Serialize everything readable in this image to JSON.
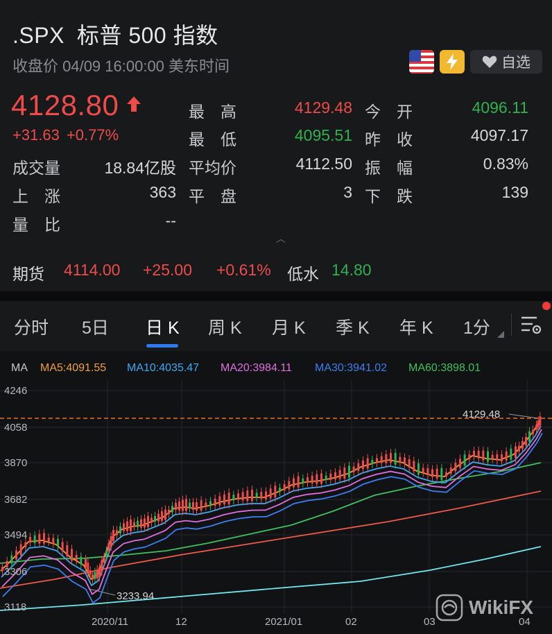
{
  "header": {
    "symbol": ".SPX",
    "name": "标普 500 指数",
    "subtitle": "收盘价 04/09 16:00:00 美东时间",
    "fav_label": "自选"
  },
  "quote": {
    "price": "4128.80",
    "change": "+31.63",
    "change_pct": "+0.77%",
    "high_label": "最　高",
    "high": "4129.48",
    "open_label": "今　开",
    "open": "4096.11",
    "low_label": "最　低",
    "low": "4095.51",
    "prev_label": "昨　收",
    "prev_close": "4097.17",
    "volume_label": "成交量",
    "volume": "18.84亿股",
    "avg_label": "平均价",
    "avg": "4112.50",
    "amp_label": "振　幅",
    "amplitude": "0.83%",
    "up_label": "上　涨",
    "up": "363",
    "flat_label": "平　盘",
    "flat": "3",
    "down_label": "下　跌",
    "down": "139",
    "ratio_label": "量　比",
    "ratio": "--"
  },
  "futures": {
    "label": "期货",
    "price": "4114.00",
    "change": "+25.00",
    "change_pct": "+0.61%",
    "basis_label": "低水",
    "basis": "14.80"
  },
  "tabs": [
    "分时",
    "5日",
    "日 K",
    "周 K",
    "月 K",
    "季 K",
    "年 K",
    "1分"
  ],
  "active_tab": "日 K",
  "ma": {
    "title": "MA",
    "ma5": "MA5:4091.55",
    "ma10": "MA10:4035.47",
    "ma20": "MA20:3984.11",
    "ma30": "MA30:3941.02",
    "ma60": "MA60:3898.01"
  },
  "chart_data": {
    "type": "candlestick",
    "y_ticks": [
      "4246",
      "4058",
      "3870",
      "3682",
      "3494",
      "3306",
      "3118"
    ],
    "x_ticks": [
      "2020/11",
      "12",
      "2021/01",
      "02",
      "03",
      "04"
    ],
    "ylim": [
      3118,
      4246
    ],
    "max_label": "4129.48",
    "min_label": "3233.94",
    "colors": {
      "ma5": "#f0a040",
      "ma10": "#3fa9f5",
      "ma20": "#e070e0",
      "ma30": "#3d7ff0",
      "ma60": "#40c060",
      "up": "#ef4b4b",
      "down": "#31b052"
    }
  },
  "watermark": "WikiFX"
}
